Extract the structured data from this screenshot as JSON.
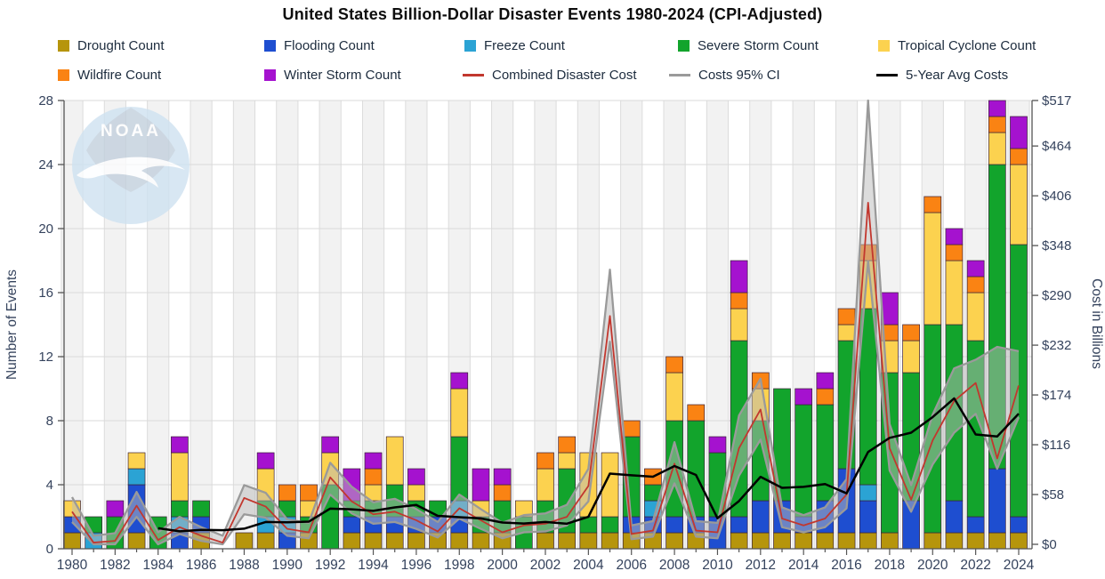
{
  "title": "United States Billion-Dollar Disaster Events 1980-2024 (CPI-Adjusted)",
  "watermark": "NOAA",
  "axes": {
    "left_label": "Number of Events",
    "right_label": "Cost in Billions",
    "left_ticks": [
      0,
      4,
      8,
      12,
      16,
      20,
      24,
      28
    ],
    "right_ticks": [
      "$0",
      "$58",
      "$116",
      "$174",
      "$232",
      "$290",
      "$348",
      "$406",
      "$464",
      "$517"
    ],
    "x_ticks": [
      1980,
      1982,
      1984,
      1986,
      1988,
      1990,
      1992,
      1994,
      1996,
      1998,
      2000,
      2002,
      2004,
      2006,
      2008,
      2010,
      2012,
      2014,
      2016,
      2018,
      2020,
      2022,
      2024
    ]
  },
  "legend": [
    {
      "label": "Drought Count",
      "color": "#b6950c",
      "swatch": "square"
    },
    {
      "label": "Flooding Count",
      "color": "#1e4ed0",
      "swatch": "square"
    },
    {
      "label": "Freeze Count",
      "color": "#2ba3d4",
      "swatch": "square"
    },
    {
      "label": "Severe Storm Count",
      "color": "#12a42c",
      "swatch": "square"
    },
    {
      "label": "Tropical Cyclone Count",
      "color": "#fcd24f",
      "swatch": "square"
    },
    {
      "label": "Wildfire Count",
      "color": "#fa8313",
      "swatch": "square"
    },
    {
      "label": "Winter Storm Count",
      "color": "#a512cf",
      "swatch": "square"
    },
    {
      "label": "Combined Disaster Cost",
      "color": "#c2372e",
      "swatch": "line"
    },
    {
      "label": "Costs 95% CI",
      "color": "#9a9a9a",
      "swatch": "line"
    },
    {
      "label": "5-Year Avg Costs",
      "color": "#000000",
      "swatch": "line"
    }
  ],
  "chart_data": {
    "type": "combo-stacked-bar-line",
    "x": [
      1980,
      1981,
      1982,
      1983,
      1984,
      1985,
      1986,
      1987,
      1988,
      1989,
      1990,
      1991,
      1992,
      1993,
      1994,
      1995,
      1996,
      1997,
      1998,
      1999,
      2000,
      2001,
      2002,
      2003,
      2004,
      2005,
      2006,
      2007,
      2008,
      2009,
      2010,
      2011,
      2012,
      2013,
      2014,
      2015,
      2016,
      2017,
      2018,
      2019,
      2020,
      2021,
      2022,
      2023,
      2024
    ],
    "ylabel_left": "Number of Events",
    "ylim_left": [
      0,
      28
    ],
    "ylabel_right": "Cost in Billions (USD)",
    "ylim_right": [
      0,
      517
    ],
    "grid": true,
    "legend_position": "top",
    "bar_series": [
      {
        "name": "Drought Count",
        "color": "#b6950c",
        "values": [
          1,
          0,
          0,
          1,
          0,
          0,
          1,
          0,
          1,
          1,
          0,
          1,
          0,
          1,
          1,
          1,
          1,
          1,
          1,
          1,
          1,
          0,
          1,
          1,
          1,
          1,
          1,
          1,
          1,
          1,
          0,
          1,
          1,
          1,
          1,
          1,
          1,
          1,
          1,
          0,
          1,
          1,
          1,
          1,
          1
        ]
      },
      {
        "name": "Flooding Count",
        "color": "#1e4ed0",
        "values": [
          1,
          0,
          0,
          3,
          0,
          1,
          1,
          0,
          0,
          0,
          1,
          0,
          0,
          1,
          1,
          1,
          1,
          1,
          1,
          0,
          0,
          0,
          0,
          0,
          0,
          0,
          1,
          1,
          1,
          1,
          2,
          1,
          2,
          2,
          1,
          2,
          4,
          2,
          0,
          3,
          0,
          2,
          1,
          4,
          1
        ]
      },
      {
        "name": "Freeze Count",
        "color": "#2ba3d4",
        "values": [
          0,
          1,
          0,
          1,
          0,
          1,
          0,
          0,
          0,
          1,
          1,
          0,
          0,
          0,
          0,
          0,
          0,
          0,
          1,
          0,
          0,
          0,
          0,
          0,
          0,
          0,
          0,
          1,
          0,
          0,
          0,
          0,
          0,
          0,
          0,
          0,
          0,
          1,
          0,
          0,
          0,
          0,
          0,
          0,
          0
        ]
      },
      {
        "name": "Severe Storm Count",
        "color": "#12a42c",
        "values": [
          0,
          1,
          2,
          0,
          2,
          1,
          1,
          0,
          0,
          1,
          1,
          1,
          4,
          1,
          1,
          2,
          1,
          1,
          4,
          1,
          2,
          2,
          2,
          4,
          1,
          1,
          5,
          1,
          6,
          6,
          4,
          11,
          5,
          7,
          7,
          6,
          8,
          11,
          10,
          8,
          13,
          11,
          11,
          19,
          17
        ]
      },
      {
        "name": "Tropical Cyclone Count",
        "color": "#fcd24f",
        "values": [
          1,
          0,
          0,
          1,
          0,
          3,
          0,
          0,
          0,
          2,
          0,
          1,
          2,
          0,
          1,
          3,
          1,
          0,
          3,
          1,
          0,
          1,
          2,
          1,
          4,
          4,
          0,
          0,
          3,
          0,
          0,
          2,
          2,
          0,
          0,
          0,
          1,
          3,
          2,
          2,
          7,
          4,
          3,
          2,
          5
        ]
      },
      {
        "name": "Wildfire Count",
        "color": "#fa8313",
        "values": [
          0,
          0,
          0,
          0,
          0,
          0,
          0,
          0,
          0,
          0,
          1,
          1,
          0,
          0,
          1,
          0,
          0,
          0,
          0,
          0,
          1,
          0,
          1,
          1,
          0,
          0,
          1,
          1,
          1,
          1,
          0,
          1,
          1,
          0,
          0,
          1,
          1,
          1,
          1,
          1,
          1,
          1,
          1,
          1,
          1
        ]
      },
      {
        "name": "Winter Storm Count",
        "color": "#a512cf",
        "values": [
          0,
          0,
          1,
          0,
          0,
          1,
          0,
          0,
          0,
          1,
          0,
          0,
          1,
          2,
          1,
          0,
          1,
          0,
          1,
          2,
          1,
          0,
          0,
          0,
          0,
          0,
          0,
          0,
          0,
          0,
          1,
          2,
          0,
          0,
          1,
          1,
          0,
          0,
          2,
          0,
          0,
          1,
          1,
          1,
          2
        ]
      }
    ],
    "line_series": [
      {
        "name": "Combined Disaster Cost",
        "color": "#c2372e",
        "axis": "right",
        "unit": "billion USD",
        "values": [
          38,
          2,
          4,
          45,
          5,
          20,
          10,
          2,
          54,
          44,
          18,
          14,
          78,
          50,
          35,
          38,
          28,
          15,
          42,
          28,
          14,
          22,
          24,
          32,
          68,
          266,
          12,
          16,
          94,
          16,
          14,
          112,
          157,
          30,
          22,
          30,
          58,
          398,
          112,
          52,
          121,
          167,
          188,
          100,
          185
        ]
      },
      {
        "name": "Costs 95% CI Upper",
        "color": "#9a9a9a",
        "axis": "right",
        "unit": "billion USD",
        "values": [
          55,
          10,
          13,
          61,
          14,
          32,
          20,
          10,
          69,
          60,
          29,
          25,
          95,
          67,
          49,
          53,
          41,
          26,
          58,
          41,
          25,
          34,
          36,
          46,
          88,
          320,
          22,
          27,
          119,
          27,
          25,
          150,
          193,
          43,
          34,
          43,
          76,
          517,
          140,
          69,
          151,
          205,
          215,
          230,
          225
        ]
      },
      {
        "name": "Costs 95% CI Lower",
        "color": "#9a9a9a",
        "axis": "right",
        "unit": "billion USD",
        "values": [
          26,
          0,
          0,
          32,
          0,
          12,
          4,
          0,
          35,
          31,
          10,
          7,
          58,
          36,
          24,
          26,
          18,
          8,
          30,
          18,
          7,
          14,
          15,
          22,
          50,
          236,
          6,
          9,
          71,
          9,
          7,
          80,
          122,
          20,
          14,
          20,
          42,
          330,
          86,
          38,
          93,
          130,
          152,
          88,
          148
        ]
      },
      {
        "name": "5-Year Avg Costs",
        "color": "#000000",
        "axis": "right",
        "unit": "billion USD",
        "values": [
          null,
          null,
          null,
          null,
          18.8,
          15.2,
          16.8,
          16.4,
          18.2,
          26,
          25.6,
          26.4,
          41.6,
          40.8,
          39,
          43,
          45.8,
          33.2,
          31.6,
          30.2,
          25.4,
          24.2,
          26,
          24,
          32,
          82.4,
          80.4,
          78.8,
          91.2,
          80.8,
          30.4,
          50.4,
          78.6,
          65.8,
          67,
          70.2,
          59.4,
          107.6,
          124,
          130,
          148.2,
          170,
          128,
          125.6,
          152.2
        ]
      }
    ]
  }
}
